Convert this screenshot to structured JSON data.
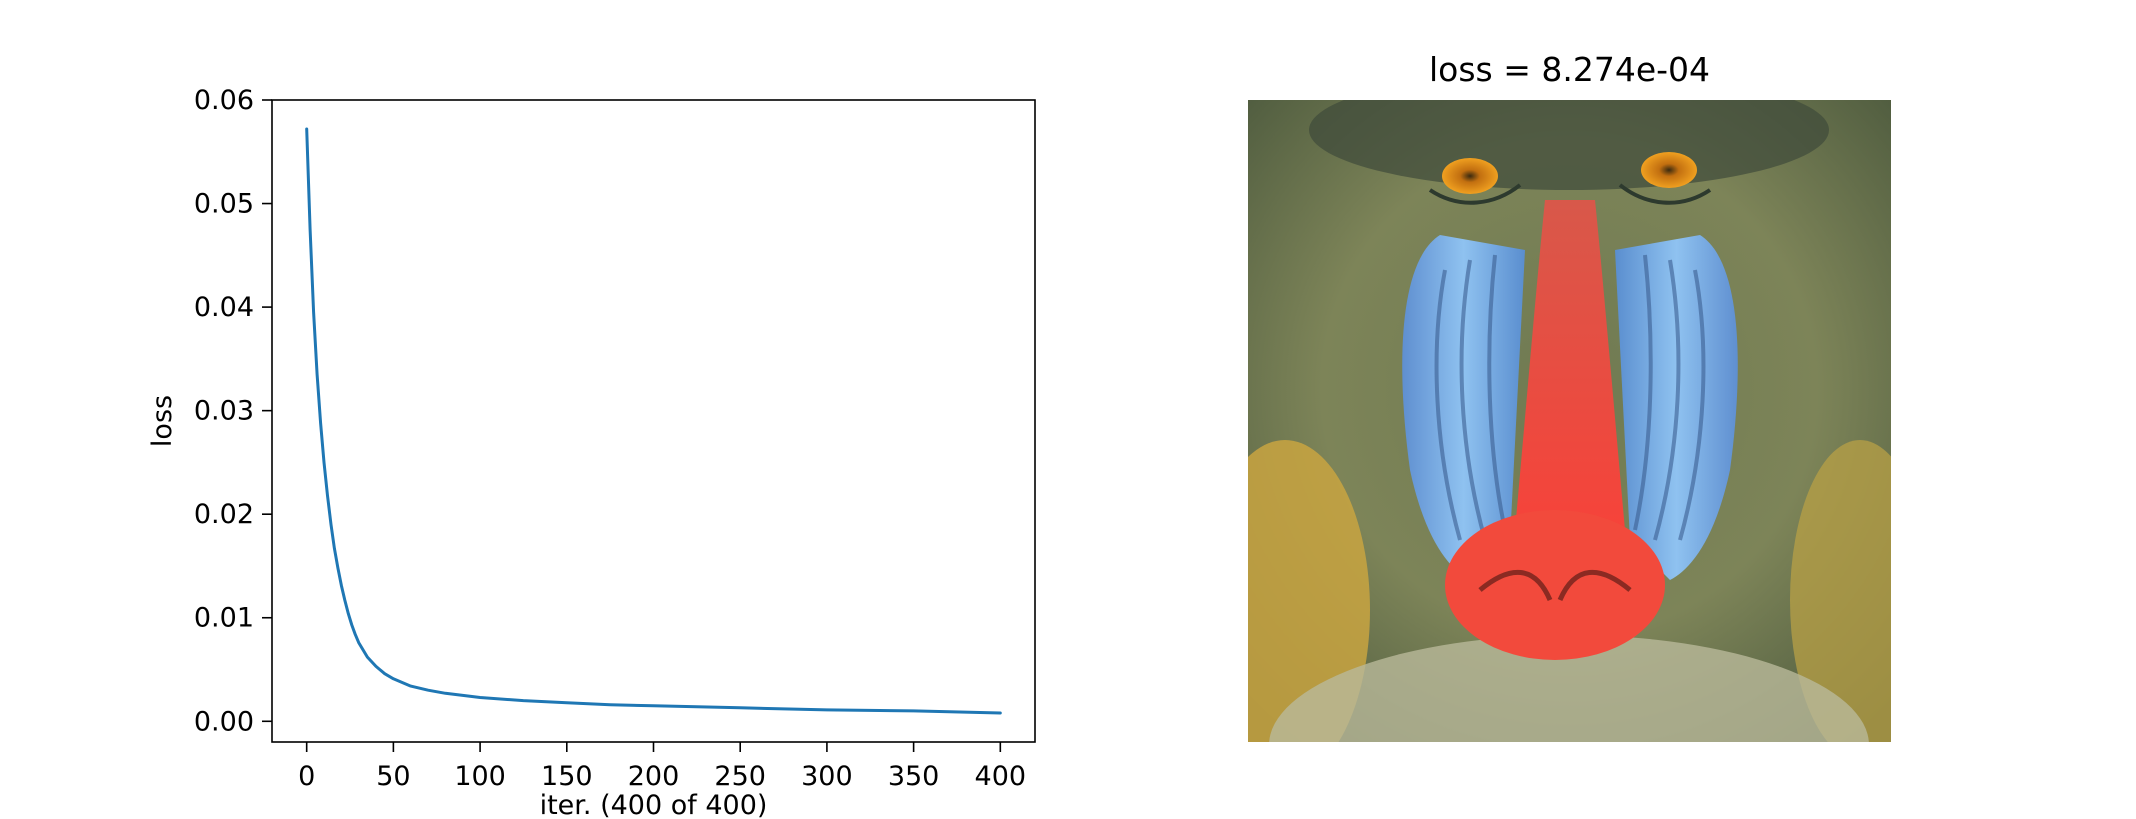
{
  "chart_data": [
    {
      "type": "line",
      "xlabel": "iter. (400 of 400)",
      "ylabel": "loss",
      "xlim": [
        -20,
        420
      ],
      "ylim": [
        -0.002,
        0.06
      ],
      "xticks": [
        0,
        50,
        100,
        150,
        200,
        250,
        300,
        350,
        400
      ],
      "xtick_labels": [
        "0",
        "50",
        "100",
        "150",
        "200",
        "250",
        "300",
        "350",
        "400"
      ],
      "yticks": [
        0.0,
        0.01,
        0.02,
        0.03,
        0.04,
        0.05,
        0.06
      ],
      "ytick_labels": [
        "0.00",
        "0.01",
        "0.02",
        "0.03",
        "0.04",
        "0.05",
        "0.06"
      ],
      "grid": false,
      "series": [
        {
          "color": "#1f77b4",
          "x": [
            0,
            2,
            4,
            6,
            8,
            10,
            12,
            14,
            16,
            18,
            20,
            22,
            24,
            26,
            28,
            30,
            35,
            40,
            45,
            50,
            60,
            70,
            80,
            90,
            100,
            125,
            150,
            175,
            200,
            250,
            300,
            350,
            400
          ],
          "y": [
            0.0572,
            0.0475,
            0.0395,
            0.0335,
            0.0288,
            0.025,
            0.0218,
            0.019,
            0.0167,
            0.0148,
            0.0131,
            0.0117,
            0.0104,
            0.0093,
            0.0084,
            0.0076,
            0.0062,
            0.0053,
            0.0046,
            0.0041,
            0.0034,
            0.003,
            0.0027,
            0.0025,
            0.0023,
            0.002,
            0.0018,
            0.0016,
            0.0015,
            0.0013,
            0.0011,
            0.001,
            0.0008
          ]
        }
      ]
    },
    {
      "type": "image",
      "title": "loss = 8.274e-04",
      "image": "mandrill-face"
    }
  ]
}
